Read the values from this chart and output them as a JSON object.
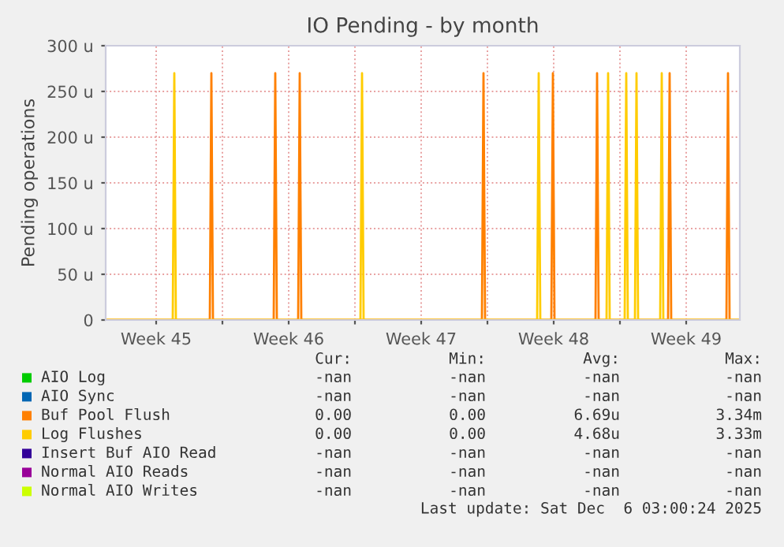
{
  "chart_data": {
    "type": "line",
    "title": "IO Pending - by month",
    "ylabel": "Pending operations",
    "xlim": [
      "2025-11-03T20:00",
      "2025-12-07T08:00"
    ],
    "xticks": [
      {
        "value": "2025-11-06T12:00",
        "label": "Week 45"
      },
      {
        "value": "2025-11-10",
        "label": null
      },
      {
        "value": "2025-11-13T12:00",
        "label": "Week 46"
      },
      {
        "value": "2025-11-17",
        "label": null
      },
      {
        "value": "2025-11-20T12:00",
        "label": "Week 47"
      },
      {
        "value": "2025-11-24",
        "label": null
      },
      {
        "value": "2025-11-27T12:00",
        "label": "Week 48"
      },
      {
        "value": "2025-12-01",
        "label": null
      },
      {
        "value": "2025-12-04T12:00",
        "label": "Week 49"
      }
    ],
    "ylim": [
      0,
      300
    ],
    "yticks": [
      0,
      {
        "value": 50,
        "label": "50 u"
      },
      {
        "value": 100,
        "label": "100 u"
      },
      {
        "value": 150,
        "label": "150 u"
      },
      {
        "value": 200,
        "label": "200 u"
      },
      {
        "value": 250,
        "label": "250 u"
      },
      {
        "value": 300,
        "label": "300 u"
      }
    ],
    "grid": true,
    "legend": "bottom",
    "marker": "none",
    "line_style": "solid",
    "series": [
      {
        "name": "AIO Log",
        "color": "#00cc00"
      },
      {
        "name": "AIO Sync",
        "color": "#0066b3"
      },
      {
        "name": "Buf Pool Flush",
        "color": "#ff8000",
        "x": [
          "2025-11-03T20:00",
          "2025-11-09T08:00",
          "2025-11-09T10:00",
          "2025-11-09T12:00",
          "2025-11-12T17:00",
          "2025-11-12T19:00",
          "2025-11-12T21:00",
          "2025-11-14T00:00",
          "2025-11-14T02:00",
          "2025-11-14T04:00",
          "2025-11-23T17:00",
          "2025-11-23T19:00",
          "2025-11-23T21:00",
          "2025-11-27T09:00",
          "2025-11-27T11:00",
          "2025-11-27T13:00",
          "2025-11-29T17:00",
          "2025-11-29T19:00",
          "2025-11-29T21:00",
          "2025-12-03T13:00",
          "2025-12-03T15:00",
          "2025-12-03T17:00",
          "2025-12-06T15:00",
          "2025-12-06T17:00",
          "2025-12-06T19:00",
          "2025-12-07T08:00"
        ],
        "values": [
          0,
          0,
          270,
          0,
          0,
          270,
          0,
          0,
          270,
          0,
          0,
          270,
          0,
          0,
          270,
          0,
          0,
          270,
          0,
          0,
          270,
          0,
          0,
          270,
          0,
          0
        ]
      },
      {
        "name": "Log Flushes",
        "color": "#ffcc00",
        "x": [
          "2025-11-03T20:00",
          "2025-11-07T09:00",
          "2025-11-07T11:00",
          "2025-11-07T13:00",
          "2025-11-17T07:00",
          "2025-11-17T09:00",
          "2025-11-17T11:00",
          "2025-11-26T15:00",
          "2025-11-26T17:00",
          "2025-11-26T19:00",
          "2025-11-30T07:00",
          "2025-11-30T09:00",
          "2025-11-30T11:00",
          "2025-12-01T06:00",
          "2025-12-01T08:00",
          "2025-12-01T10:00",
          "2025-12-01T19:00",
          "2025-12-01T21:00",
          "2025-12-01T23:00",
          "2025-12-03T03:00",
          "2025-12-03T05:00",
          "2025-12-03T07:00",
          "2025-12-07T08:00"
        ],
        "values": [
          0,
          0,
          270,
          0,
          0,
          270,
          0,
          0,
          270,
          0,
          0,
          270,
          0,
          0,
          270,
          0,
          0,
          270,
          0,
          0,
          270,
          0,
          0
        ]
      },
      {
        "name": "Insert Buf AIO Read",
        "color": "#330099"
      },
      {
        "name": "Normal AIO Reads",
        "color": "#990099"
      },
      {
        "name": "Normal AIO Writes",
        "color": "#ccff00"
      }
    ],
    "annotations": [
      "Cur:",
      "Min:",
      "Avg:",
      "Max:",
      "-nan",
      "-nan",
      "-nan",
      "-nan",
      "-nan",
      "-nan",
      "-nan",
      "-nan",
      "0.00",
      "0.00",
      "6.69u",
      "3.34m",
      "0.00",
      "0.00",
      "4.68u",
      "3.33m",
      "-nan",
      "-nan",
      "-nan",
      "-nan",
      "-nan",
      "-nan",
      "-nan",
      "-nan",
      "-nan",
      "-nan",
      "-nan",
      "-nan",
      "Last update: Sat Dec  6 03:00:24 2025"
    ]
  }
}
